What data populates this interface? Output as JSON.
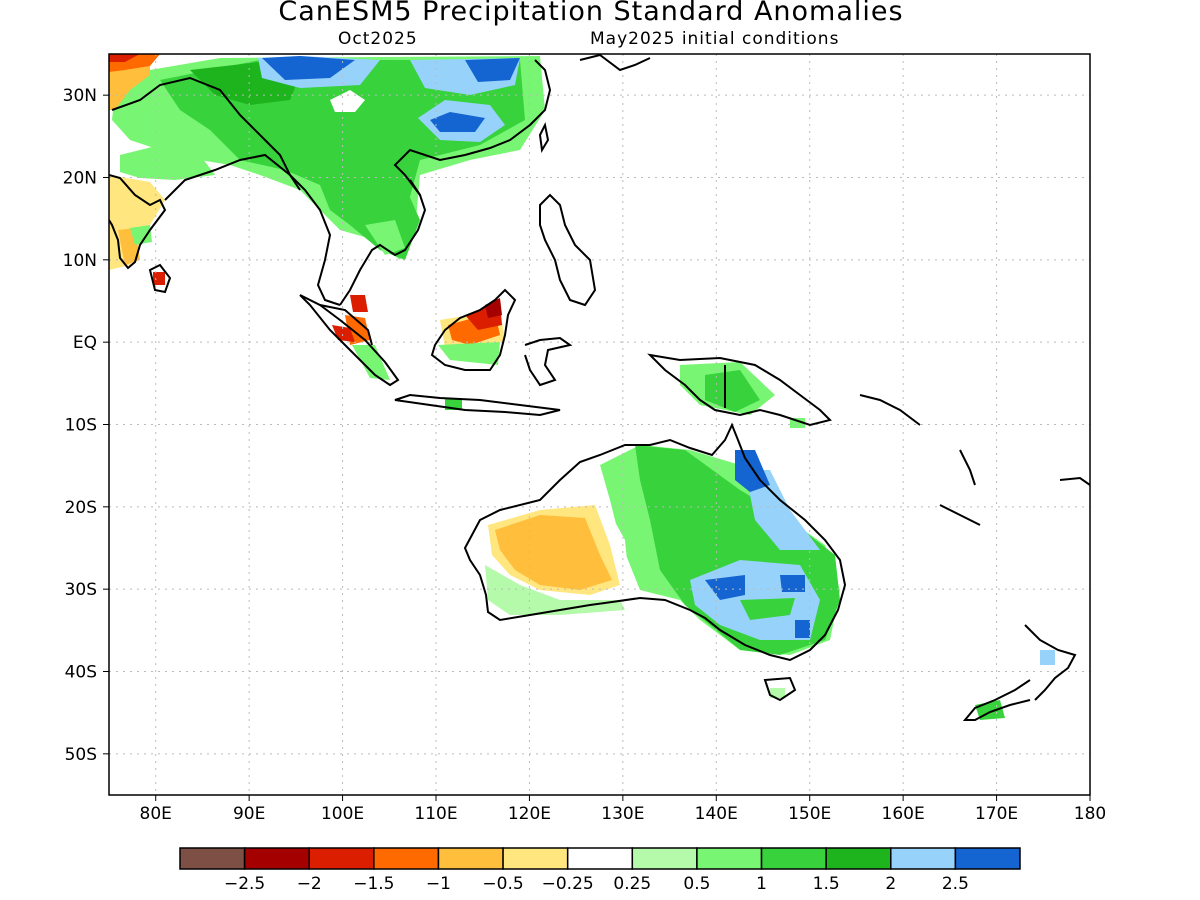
{
  "title": "CanESM5 Precipitation Standard Anomalies",
  "subtitle_left": "Oct2025",
  "subtitle_right": "May2025 initial conditions",
  "map": {
    "lon_range": [
      75,
      180
    ],
    "lat_range": [
      -55,
      35
    ],
    "lat_ticks": [
      {
        "value": 30,
        "label": "30N"
      },
      {
        "value": 20,
        "label": "20N"
      },
      {
        "value": 10,
        "label": "10N"
      },
      {
        "value": 0,
        "label": "EQ"
      },
      {
        "value": -10,
        "label": "10S"
      },
      {
        "value": -20,
        "label": "20S"
      },
      {
        "value": -30,
        "label": "30S"
      },
      {
        "value": -40,
        "label": "40S"
      },
      {
        "value": -50,
        "label": "50S"
      }
    ],
    "lon_ticks": [
      {
        "value": 80,
        "label": "80E"
      },
      {
        "value": 90,
        "label": "90E"
      },
      {
        "value": 100,
        "label": "100E"
      },
      {
        "value": 110,
        "label": "110E"
      },
      {
        "value": 120,
        "label": "120E"
      },
      {
        "value": 130,
        "label": "130E"
      },
      {
        "value": 140,
        "label": "140E"
      },
      {
        "value": 150,
        "label": "150E"
      },
      {
        "value": 160,
        "label": "160E"
      },
      {
        "value": 170,
        "label": "170E"
      },
      {
        "value": 180,
        "label": "180"
      }
    ],
    "gridlines": true
  },
  "colorbar": {
    "colors": [
      "#7d4f45",
      "#a50000",
      "#dc1e00",
      "#ff6a00",
      "#ffbe3c",
      "#ffe67e",
      "#ffffff",
      "#b4faaa",
      "#78f573",
      "#37d23c",
      "#1eb41e",
      "#96d2fa",
      "#1464d2"
    ],
    "labels": [
      "−2.5",
      "−2",
      "−1.5",
      "−1",
      "−0.5",
      "−0.25",
      "0.25",
      "0.5",
      "1",
      "1.5",
      "2",
      "2.5"
    ]
  }
}
